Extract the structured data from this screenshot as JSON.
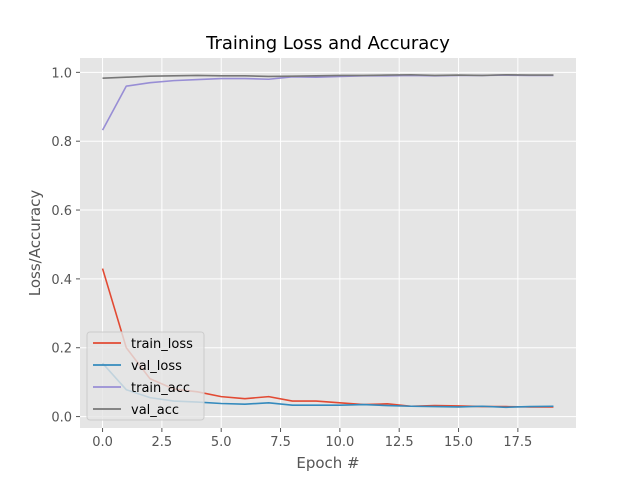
{
  "chart_data": {
    "type": "line",
    "title": "Training Loss and Accuracy",
    "xlabel": "Epoch #",
    "ylabel": "Loss/Accuracy",
    "xlim": [
      -0.95,
      19.95
    ],
    "ylim": [
      -0.0332,
      1.0417
    ],
    "xticks": [
      0,
      2.5,
      5,
      7.5,
      10,
      12.5,
      15,
      17.5
    ],
    "xtick_labels": [
      "0.0",
      "2.5",
      "5.0",
      "7.5",
      "10.0",
      "12.5",
      "15.0",
      "17.5"
    ],
    "yticks": [
      0,
      0.2,
      0.4,
      0.6,
      0.8,
      1.0
    ],
    "ytick_labels": [
      "0.0",
      "0.2",
      "0.4",
      "0.6",
      "0.8",
      "1.0"
    ],
    "grid": true,
    "legend_position": "lower-left",
    "background_color": "#e5e5e5",
    "grid_color": "#ffffff",
    "x": [
      0,
      1,
      2,
      3,
      4,
      5,
      6,
      7,
      8,
      9,
      10,
      11,
      12,
      13,
      14,
      15,
      16,
      17,
      18,
      19
    ],
    "series": [
      {
        "name": "train_loss",
        "color": "#e24a33",
        "values": [
          0.43,
          0.2,
          0.11,
          0.08,
          0.072,
          0.058,
          0.052,
          0.058,
          0.045,
          0.045,
          0.04,
          0.035,
          0.037,
          0.03,
          0.032,
          0.031,
          0.029,
          0.029,
          0.028,
          0.028
        ]
      },
      {
        "name": "val_loss",
        "color": "#348abd",
        "values": [
          0.155,
          0.078,
          0.055,
          0.045,
          0.042,
          0.038,
          0.036,
          0.04,
          0.033,
          0.033,
          0.033,
          0.035,
          0.032,
          0.03,
          0.029,
          0.028,
          0.03,
          0.027,
          0.029,
          0.03
        ]
      },
      {
        "name": "train_acc",
        "color": "#988ed5",
        "values": [
          0.832,
          0.96,
          0.97,
          0.976,
          0.979,
          0.982,
          0.982,
          0.98,
          0.987,
          0.986,
          0.988,
          0.99,
          0.99,
          0.991,
          0.99,
          0.991,
          0.991,
          0.992,
          0.991,
          0.991
        ]
      },
      {
        "name": "val_acc",
        "color": "#777777",
        "values": [
          0.983,
          0.986,
          0.989,
          0.99,
          0.991,
          0.99,
          0.99,
          0.988,
          0.989,
          0.99,
          0.991,
          0.991,
          0.992,
          0.993,
          0.991,
          0.992,
          0.991,
          0.993,
          0.992,
          0.992
        ]
      }
    ]
  }
}
